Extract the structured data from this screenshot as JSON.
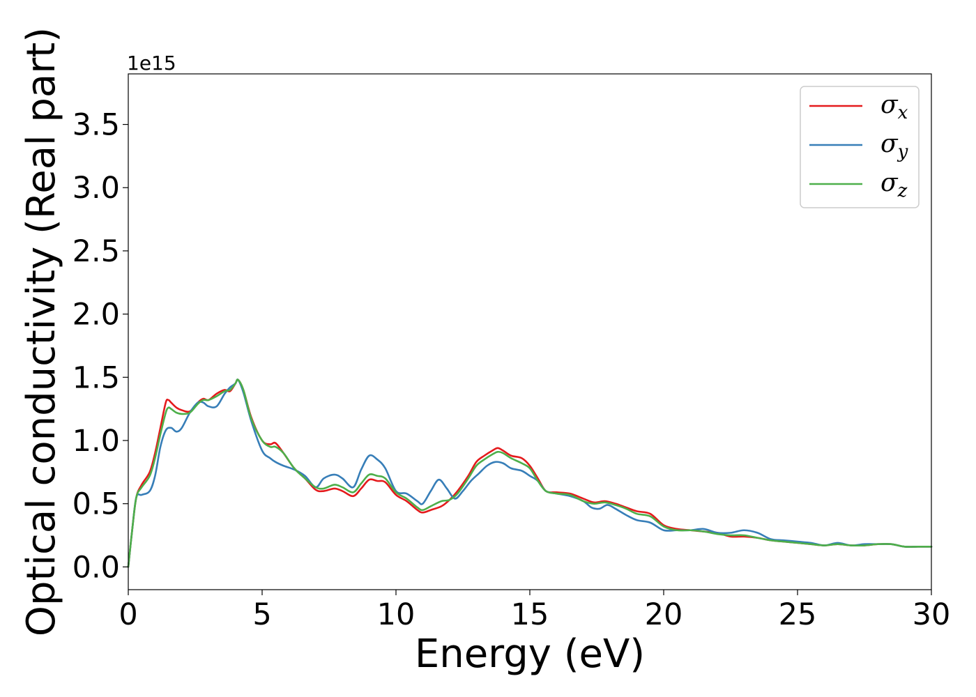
{
  "chart_data": {
    "type": "line",
    "xlabel": "Energy (eV)",
    "ylabel": "Optical conductivity (Real part)",
    "y_offset_label": "1e15",
    "xlim": [
      0,
      30
    ],
    "ylim": [
      -0.18,
      3.9
    ],
    "xticks": [
      0,
      5,
      10,
      15,
      20,
      25,
      30
    ],
    "xtick_labels": [
      "0",
      "5",
      "10",
      "15",
      "20",
      "25",
      "30"
    ],
    "yticks": [
      0.0,
      0.5,
      1.0,
      1.5,
      2.0,
      2.5,
      3.0,
      3.5
    ],
    "ytick_labels": [
      "0.0",
      "0.5",
      "1.0",
      "1.5",
      "2.0",
      "2.5",
      "3.0",
      "3.5"
    ],
    "grid": false,
    "legend_position": "top-right",
    "series": [
      {
        "name": "σx",
        "label_main": "σ",
        "label_sub": "x",
        "color": "#e41a1c",
        "x": [
          0,
          0.15,
          0.3,
          0.5,
          0.8,
          1.0,
          1.2,
          1.4,
          1.5,
          1.6,
          1.8,
          2.0,
          2.3,
          2.6,
          2.8,
          3.0,
          3.3,
          3.6,
          3.8,
          4.0,
          4.1,
          4.3,
          4.6,
          5.0,
          5.3,
          5.5,
          5.8,
          6.2,
          6.6,
          7.0,
          7.3,
          7.7,
          8.0,
          8.4,
          8.7,
          9.0,
          9.3,
          9.6,
          10.0,
          10.4,
          10.8,
          11.0,
          11.3,
          11.7,
          12.0,
          12.3,
          12.7,
          13.0,
          13.3,
          13.6,
          13.8,
          14.0,
          14.3,
          14.7,
          15.0,
          15.3,
          15.6,
          16.0,
          16.5,
          17.0,
          17.4,
          17.8,
          18.2,
          18.6,
          19.0,
          19.5,
          20.0,
          20.5,
          21.0,
          21.5,
          22.0,
          22.5,
          23.0,
          23.5,
          24.0,
          24.5,
          25.0,
          25.5,
          26.0,
          26.5,
          27.0,
          27.5,
          28.0,
          28.5,
          29.0,
          29.5,
          30.0
        ],
        "values": [
          0.0,
          0.3,
          0.55,
          0.65,
          0.75,
          0.9,
          1.1,
          1.3,
          1.32,
          1.3,
          1.26,
          1.24,
          1.23,
          1.3,
          1.33,
          1.32,
          1.37,
          1.4,
          1.39,
          1.45,
          1.48,
          1.4,
          1.18,
          1.0,
          0.97,
          0.98,
          0.9,
          0.78,
          0.7,
          0.61,
          0.6,
          0.62,
          0.6,
          0.56,
          0.62,
          0.69,
          0.68,
          0.67,
          0.57,
          0.52,
          0.45,
          0.43,
          0.45,
          0.48,
          0.53,
          0.6,
          0.72,
          0.83,
          0.88,
          0.92,
          0.94,
          0.92,
          0.88,
          0.86,
          0.8,
          0.7,
          0.6,
          0.59,
          0.58,
          0.54,
          0.51,
          0.52,
          0.5,
          0.47,
          0.44,
          0.42,
          0.33,
          0.3,
          0.29,
          0.28,
          0.27,
          0.24,
          0.24,
          0.23,
          0.21,
          0.2,
          0.19,
          0.18,
          0.17,
          0.18,
          0.17,
          0.17,
          0.18,
          0.18,
          0.16,
          0.16,
          0.16
        ]
      },
      {
        "name": "σy",
        "label_main": "σ",
        "label_sub": "y",
        "color": "#377eb8",
        "x": [
          0,
          0.15,
          0.3,
          0.5,
          0.8,
          1.0,
          1.2,
          1.4,
          1.6,
          1.8,
          2.0,
          2.3,
          2.6,
          2.8,
          3.0,
          3.3,
          3.6,
          3.8,
          4.0,
          4.1,
          4.3,
          4.6,
          5.0,
          5.3,
          5.5,
          5.8,
          6.2,
          6.6,
          7.0,
          7.3,
          7.7,
          8.0,
          8.4,
          8.7,
          9.0,
          9.3,
          9.6,
          10.0,
          10.4,
          10.8,
          11.0,
          11.3,
          11.6,
          11.9,
          12.2,
          12.5,
          12.8,
          13.1,
          13.4,
          13.7,
          14.0,
          14.3,
          14.7,
          15.0,
          15.3,
          15.6,
          16.0,
          16.5,
          17.0,
          17.3,
          17.6,
          17.9,
          18.2,
          18.6,
          19.0,
          19.5,
          20.0,
          20.5,
          21.0,
          21.5,
          22.0,
          22.5,
          23.0,
          23.5,
          24.0,
          24.5,
          25.0,
          25.5,
          26.0,
          26.5,
          27.0,
          27.5,
          28.0,
          28.5,
          29.0,
          29.5,
          30.0
        ],
        "values": [
          0.0,
          0.3,
          0.55,
          0.57,
          0.6,
          0.72,
          0.95,
          1.08,
          1.1,
          1.07,
          1.1,
          1.22,
          1.3,
          1.3,
          1.27,
          1.27,
          1.37,
          1.42,
          1.45,
          1.48,
          1.38,
          1.15,
          0.92,
          0.86,
          0.83,
          0.8,
          0.77,
          0.72,
          0.63,
          0.7,
          0.73,
          0.7,
          0.63,
          0.77,
          0.88,
          0.85,
          0.78,
          0.6,
          0.58,
          0.52,
          0.5,
          0.6,
          0.69,
          0.62,
          0.54,
          0.6,
          0.68,
          0.74,
          0.8,
          0.83,
          0.82,
          0.78,
          0.76,
          0.72,
          0.68,
          0.6,
          0.58,
          0.56,
          0.52,
          0.47,
          0.46,
          0.49,
          0.46,
          0.41,
          0.37,
          0.35,
          0.29,
          0.29,
          0.29,
          0.3,
          0.27,
          0.27,
          0.29,
          0.27,
          0.22,
          0.21,
          0.2,
          0.19,
          0.17,
          0.19,
          0.17,
          0.18,
          0.18,
          0.18,
          0.16,
          0.16,
          0.16
        ]
      },
      {
        "name": "σz",
        "label_main": "σ",
        "label_sub": "z",
        "color": "#4daf4a",
        "x": [
          0,
          0.15,
          0.3,
          0.5,
          0.8,
          1.0,
          1.2,
          1.4,
          1.5,
          1.6,
          1.8,
          2.0,
          2.3,
          2.6,
          2.8,
          3.0,
          3.3,
          3.6,
          3.8,
          4.0,
          4.1,
          4.3,
          4.6,
          5.0,
          5.3,
          5.5,
          5.8,
          6.2,
          6.6,
          7.0,
          7.3,
          7.7,
          8.0,
          8.4,
          8.7,
          9.0,
          9.3,
          9.6,
          10.0,
          10.4,
          10.8,
          11.0,
          11.3,
          11.7,
          12.0,
          12.3,
          12.7,
          13.0,
          13.3,
          13.6,
          13.8,
          14.0,
          14.3,
          14.7,
          15.0,
          15.3,
          15.6,
          16.0,
          16.5,
          17.0,
          17.4,
          17.8,
          18.2,
          18.6,
          19.0,
          19.5,
          20.0,
          20.5,
          21.0,
          21.5,
          22.0,
          22.5,
          23.0,
          23.5,
          24.0,
          24.5,
          25.0,
          25.5,
          26.0,
          26.5,
          27.0,
          27.5,
          28.0,
          28.5,
          29.0,
          29.5,
          30.0
        ],
        "values": [
          0.0,
          0.3,
          0.55,
          0.63,
          0.72,
          0.86,
          1.05,
          1.22,
          1.26,
          1.25,
          1.22,
          1.21,
          1.22,
          1.29,
          1.32,
          1.32,
          1.35,
          1.39,
          1.4,
          1.45,
          1.48,
          1.4,
          1.17,
          1.0,
          0.95,
          0.95,
          0.9,
          0.78,
          0.7,
          0.63,
          0.62,
          0.65,
          0.63,
          0.59,
          0.66,
          0.73,
          0.72,
          0.7,
          0.59,
          0.54,
          0.47,
          0.45,
          0.48,
          0.52,
          0.53,
          0.58,
          0.7,
          0.8,
          0.85,
          0.89,
          0.91,
          0.9,
          0.86,
          0.82,
          0.78,
          0.68,
          0.6,
          0.58,
          0.57,
          0.52,
          0.5,
          0.51,
          0.49,
          0.46,
          0.42,
          0.4,
          0.32,
          0.29,
          0.29,
          0.28,
          0.26,
          0.25,
          0.25,
          0.23,
          0.21,
          0.2,
          0.19,
          0.18,
          0.17,
          0.18,
          0.17,
          0.17,
          0.18,
          0.18,
          0.16,
          0.16,
          0.16
        ]
      }
    ]
  }
}
